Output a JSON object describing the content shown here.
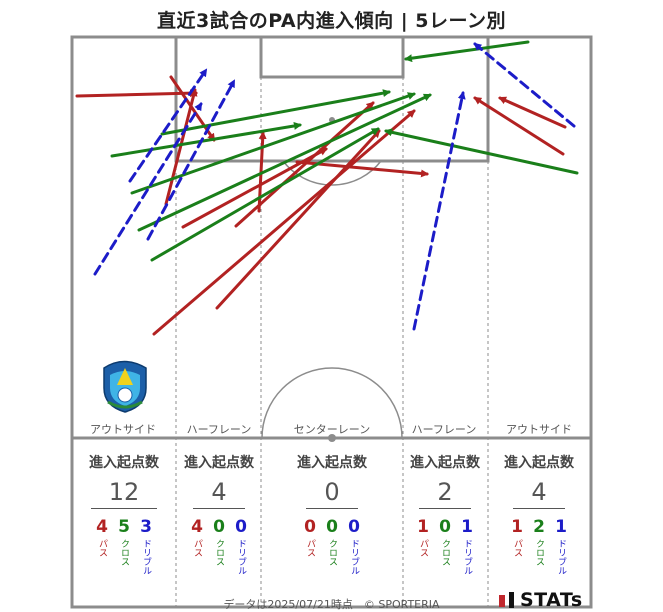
{
  "title": "直近3試合のPA内進入傾向 | 5レーン別",
  "footer": "データは2025/07/21時点　© SPORTERIA",
  "brand": "STATs",
  "colors": {
    "pass": "#b22222",
    "cross": "#1a7f1a",
    "dribble": "#1c1cc8",
    "line": "#8c8c8c"
  },
  "lanes": [
    {
      "label": "アウトサイド",
      "stat_head": "進入起点数",
      "total": "12",
      "breakdown": [
        {
          "num": "4",
          "label": "パス"
        },
        {
          "num": "5",
          "label": "クロス"
        },
        {
          "num": "3",
          "label": "ドリブル"
        }
      ]
    },
    {
      "label": "ハーフレーン",
      "stat_head": "進入起点数",
      "total": "4",
      "breakdown": [
        {
          "num": "4",
          "label": "パス"
        },
        {
          "num": "0",
          "label": "クロス"
        },
        {
          "num": "0",
          "label": "ドリブル"
        }
      ]
    },
    {
      "label": "センターレーン",
      "stat_head": "進入起点数",
      "total": "0",
      "breakdown": [
        {
          "num": "0",
          "label": "パス"
        },
        {
          "num": "0",
          "label": "クロス"
        },
        {
          "num": "0",
          "label": "ドリブル"
        }
      ]
    },
    {
      "label": "ハーフレーン",
      "stat_head": "進入起点数",
      "total": "2",
      "breakdown": [
        {
          "num": "1",
          "label": "パス"
        },
        {
          "num": "0",
          "label": "クロス"
        },
        {
          "num": "1",
          "label": "ドリブル"
        }
      ]
    },
    {
      "label": "アウトサイド",
      "stat_head": "進入起点数",
      "total": "4",
      "breakdown": [
        {
          "num": "1",
          "label": "パス"
        },
        {
          "num": "2",
          "label": "クロス"
        },
        {
          "num": "1",
          "label": "ドリブル"
        }
      ]
    }
  ],
  "chart_data": {
    "type": "scatter",
    "title": "直近3試合のPA内進入傾向 | 5レーン別",
    "legend": [],
    "arrows": [
      {
        "type": "pass",
        "from": [
          77,
          96
        ],
        "to": [
          196,
          93
        ]
      },
      {
        "type": "pass",
        "from": [
          166,
          204
        ],
        "to": [
          195,
          90
        ]
      },
      {
        "type": "pass",
        "from": [
          171,
          77
        ],
        "to": [
          214,
          140
        ]
      },
      {
        "type": "pass",
        "from": [
          183,
          227
        ],
        "to": [
          326,
          149
        ]
      },
      {
        "type": "pass",
        "from": [
          259,
          211
        ],
        "to": [
          263,
          133
        ]
      },
      {
        "type": "pass",
        "from": [
          236,
          226
        ],
        "to": [
          373,
          103
        ]
      },
      {
        "type": "pass",
        "from": [
          217,
          308
        ],
        "to": [
          379,
          131
        ]
      },
      {
        "type": "pass",
        "from": [
          154,
          334
        ],
        "to": [
          414,
          111
        ]
      },
      {
        "type": "pass",
        "from": [
          297,
          162
        ],
        "to": [
          427,
          174
        ]
      },
      {
        "type": "pass",
        "from": [
          563,
          154
        ],
        "to": [
          475,
          98
        ]
      },
      {
        "type": "pass",
        "from": [
          565,
          127
        ],
        "to": [
          500,
          98
        ]
      },
      {
        "type": "cross",
        "from": [
          112,
          156
        ],
        "to": [
          300,
          125
        ]
      },
      {
        "type": "cross",
        "from": [
          162,
          134
        ],
        "to": [
          389,
          92
        ]
      },
      {
        "type": "cross",
        "from": [
          132,
          193
        ],
        "to": [
          414,
          94
        ]
      },
      {
        "type": "cross",
        "from": [
          139,
          230
        ],
        "to": [
          430,
          95
        ]
      },
      {
        "type": "cross",
        "from": [
          152,
          260
        ],
        "to": [
          378,
          129
        ]
      },
      {
        "type": "cross",
        "from": [
          528,
          42
        ],
        "to": [
          406,
          59
        ]
      },
      {
        "type": "cross",
        "from": [
          577,
          173
        ],
        "to": [
          386,
          131
        ]
      },
      {
        "type": "dribble",
        "from": [
          95,
          274
        ],
        "to": [
          201,
          104
        ]
      },
      {
        "type": "dribble",
        "from": [
          130,
          181
        ],
        "to": [
          206,
          70
        ]
      },
      {
        "type": "dribble",
        "from": [
          148,
          239
        ],
        "to": [
          234,
          81
        ]
      },
      {
        "type": "dribble",
        "from": [
          414,
          329
        ],
        "to": [
          463,
          93
        ]
      },
      {
        "type": "dribble",
        "from": [
          574,
          126
        ],
        "to": [
          475,
          44
        ]
      }
    ]
  }
}
